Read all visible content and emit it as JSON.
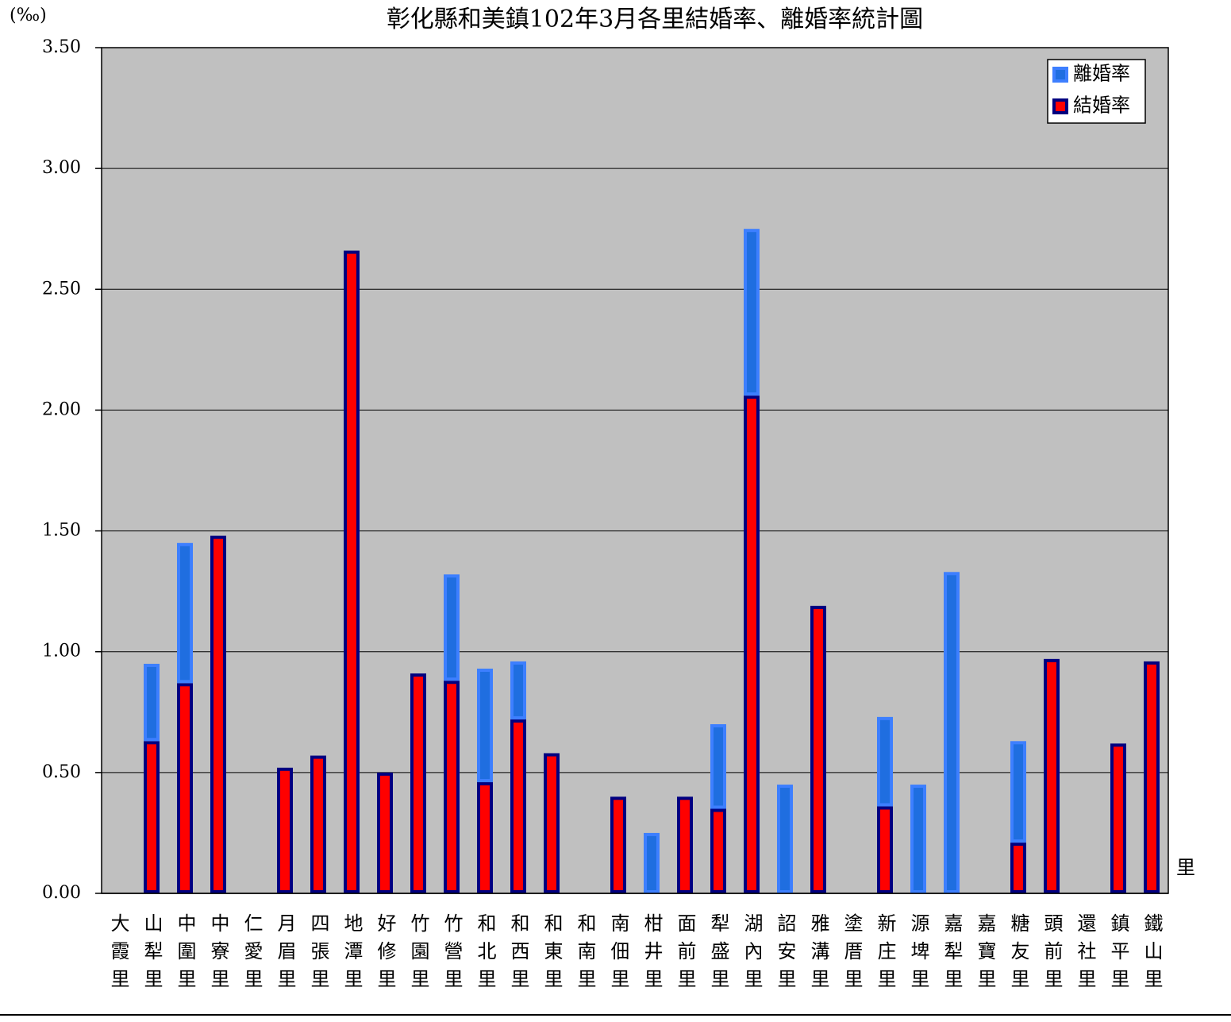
{
  "chart_data": {
    "type": "stacked_bar",
    "title": "彰化縣和美鎮102年3月各里結婚率、離婚率統計圖",
    "y_unit_label": "(‰)",
    "x_axis_label": "里",
    "categories": [
      "大霞里",
      "山犁里",
      "中圍里",
      "中寮里",
      "仁愛里",
      "月眉里",
      "四張里",
      "地潭里",
      "好修里",
      "竹園里",
      "竹營里",
      "和北里",
      "和西里",
      "和東里",
      "和南里",
      "南佃里",
      "柑井里",
      "面前里",
      "犁盛里",
      "湖內里",
      "詔安里",
      "雅溝里",
      "塗厝里",
      "新庄里",
      "源埤里",
      "嘉犁里",
      "嘉寶里",
      "糖友里",
      "頭前里",
      "還社里",
      "鎮平里",
      "鐵山里"
    ],
    "series": [
      {
        "name": "結婚率",
        "color": "#ff0000",
        "border": "#000080",
        "values": [
          0,
          0.63,
          0.87,
          1.48,
          0,
          0.52,
          0.57,
          2.66,
          0.5,
          0.91,
          0.88,
          0.46,
          0.72,
          0.58,
          0,
          0.4,
          0,
          0.4,
          0.35,
          2.06,
          0,
          1.19,
          0,
          0.36,
          0,
          0,
          0,
          0.21,
          0.97,
          0,
          0.62,
          0.96
        ]
      },
      {
        "name": "離婚率",
        "color": "#1f6ee0",
        "border": "#3d7fff",
        "values": [
          0,
          0.32,
          0.58,
          0,
          0,
          0,
          0,
          0,
          0,
          0,
          0.44,
          0.47,
          0.24,
          0,
          0,
          0,
          0.25,
          0,
          0.35,
          0.69,
          0.45,
          0,
          0,
          0.37,
          0.45,
          1.33,
          0,
          0.42,
          0,
          0,
          0,
          0
        ]
      }
    ],
    "ylim": [
      0,
      3.5
    ],
    "yticks": [
      {
        "value": 0,
        "label": "0.00"
      },
      {
        "value": 0.5,
        "label": "0.50"
      },
      {
        "value": 1,
        "label": "1.00"
      },
      {
        "value": 1.5,
        "label": "1.50"
      },
      {
        "value": 2,
        "label": "2.00"
      },
      {
        "value": 2.5,
        "label": "2.50"
      },
      {
        "value": 3,
        "label": "3.00"
      },
      {
        "value": 3.5,
        "label": "3.50"
      }
    ],
    "grid": true,
    "background": "#c0c0c0",
    "legend": "top-right"
  }
}
